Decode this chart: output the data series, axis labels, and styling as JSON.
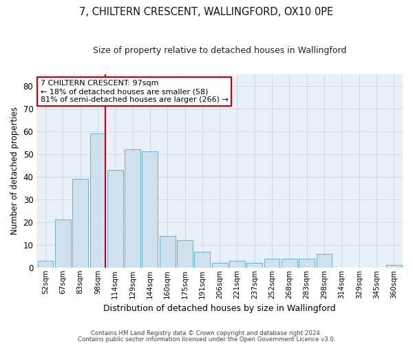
{
  "title": "7, CHILTERN CRESCENT, WALLINGFORD, OX10 0PE",
  "subtitle": "Size of property relative to detached houses in Wallingford",
  "xlabel": "Distribution of detached houses by size in Wallingford",
  "ylabel": "Number of detached properties",
  "categories": [
    "52sqm",
    "67sqm",
    "83sqm",
    "98sqm",
    "114sqm",
    "129sqm",
    "144sqm",
    "160sqm",
    "175sqm",
    "191sqm",
    "206sqm",
    "221sqm",
    "237sqm",
    "252sqm",
    "268sqm",
    "283sqm",
    "298sqm",
    "314sqm",
    "329sqm",
    "345sqm",
    "360sqm"
  ],
  "values": [
    3,
    21,
    39,
    59,
    43,
    52,
    51,
    14,
    12,
    7,
    2,
    3,
    2,
    4,
    4,
    4,
    6,
    0,
    0,
    0,
    1
  ],
  "bar_color": "#cfe0ee",
  "bar_edge_color": "#6aaed6",
  "grid_color": "#d0d8e0",
  "vline_color": "#cc0000",
  "annotation_text": "7 CHILTERN CRESCENT: 97sqm\n← 18% of detached houses are smaller (58)\n81% of semi-detached houses are larger (266) →",
  "annotation_box_color": "#ffffff",
  "annotation_box_edge": "#cc0000",
  "ylim": [
    0,
    85
  ],
  "yticks": [
    0,
    10,
    20,
    30,
    40,
    50,
    60,
    70,
    80
  ],
  "footer1": "Contains HM Land Registry data © Crown copyright and database right 2024.",
  "footer2": "Contains public sector information licensed under the Open Government Licence v3.0.",
  "bg_color": "#ffffff",
  "plot_bg_color": "#e8f0f8"
}
